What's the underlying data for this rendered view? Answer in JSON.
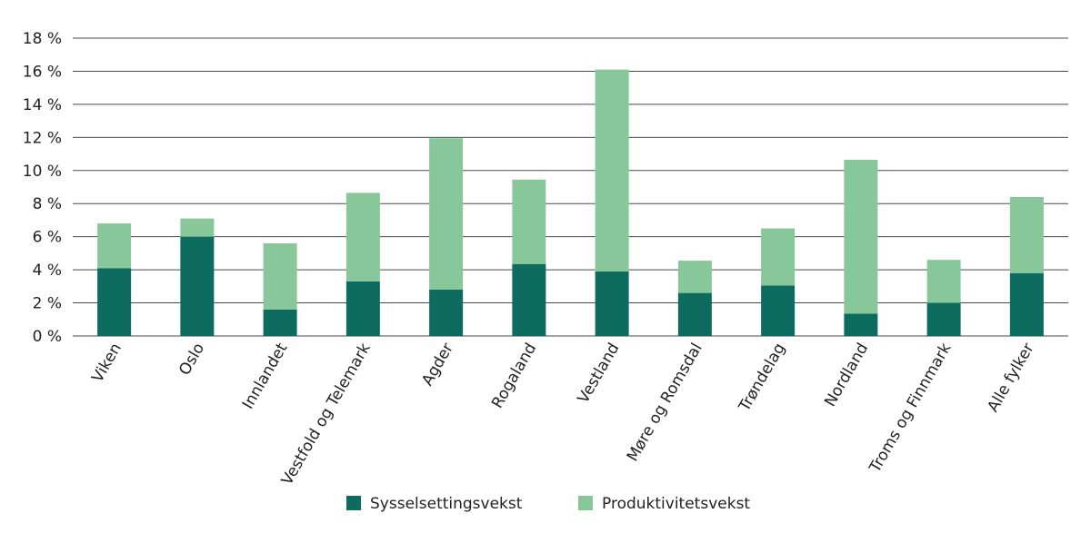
{
  "chart_data": {
    "type": "bar",
    "stacked": true,
    "title": "",
    "xlabel": "",
    "ylabel": "",
    "ylim": [
      0,
      18
    ],
    "y_ticks": [
      0,
      2,
      4,
      6,
      8,
      10,
      12,
      14,
      16,
      18
    ],
    "y_tick_labels": [
      "0 %",
      "2 %",
      "4 %",
      "6 %",
      "8 %",
      "10 %",
      "12 %",
      "14 %",
      "16 %",
      "18 %"
    ],
    "grid": true,
    "legend_position": "bottom",
    "categories": [
      "Viken",
      "Oslo",
      "Innlandet",
      "Vestfold og Telemark",
      "Agder",
      "Rogaland",
      "Vestland",
      "Møre og Romsdal",
      "Trøndelag",
      "Nordland",
      "Troms og Finnmark",
      "Alle fylker"
    ],
    "series": [
      {
        "name": "Sysselsettingsvekst",
        "color": "#0d6b60",
        "values": [
          4.1,
          6.0,
          1.6,
          3.3,
          2.8,
          4.35,
          3.9,
          2.6,
          3.05,
          1.35,
          2.0,
          3.8
        ]
      },
      {
        "name": "Produktivitetsvekst",
        "color": "#87c79a",
        "values": [
          2.7,
          1.1,
          4.0,
          5.35,
          9.15,
          5.1,
          12.2,
          1.95,
          3.45,
          9.3,
          2.6,
          4.6
        ]
      }
    ]
  }
}
